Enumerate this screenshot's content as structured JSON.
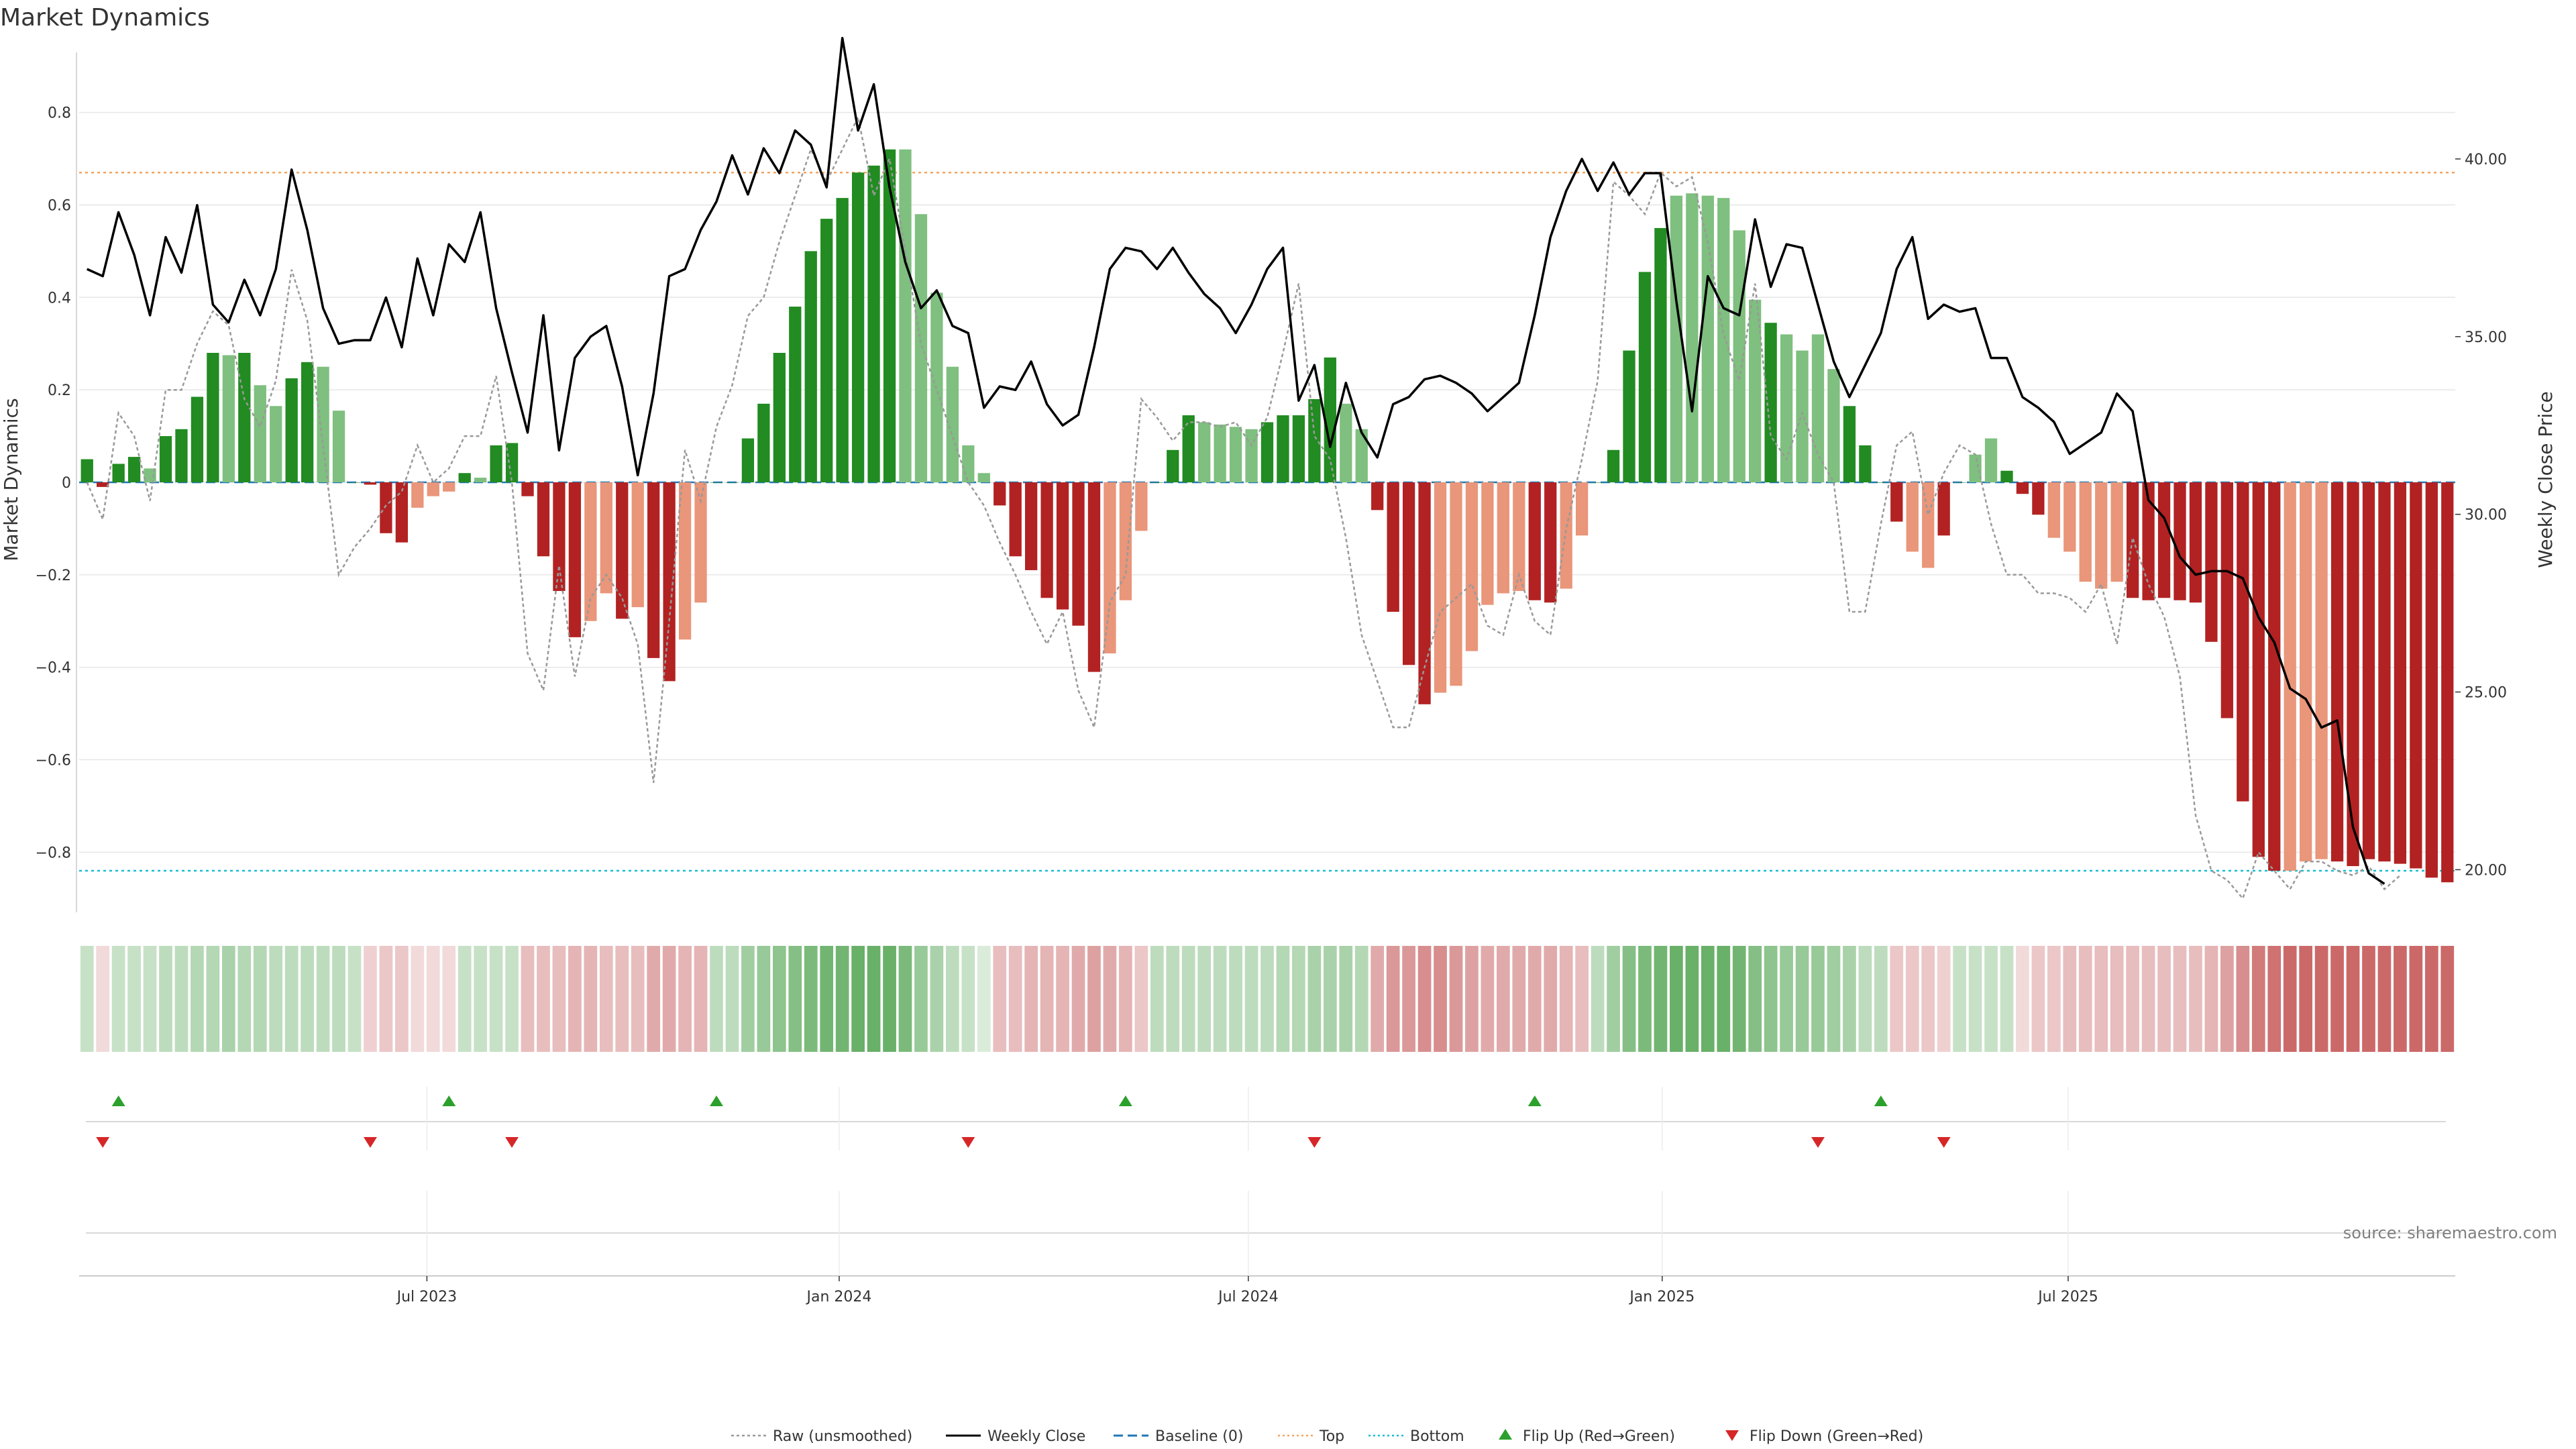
{
  "chart_data": {
    "type": "bar",
    "title": "Market Dynamics",
    "ylabel": "Market Dynamics",
    "y2label": "Weekly Close Price",
    "ylim": [
      -0.93,
      0.93
    ],
    "y2lim": [
      18.8,
      43.0
    ],
    "yticks": [
      0.8,
      0.6,
      0.4,
      0.2,
      0,
      -0.2,
      -0.4,
      -0.6,
      -0.8
    ],
    "ytick_labels": [
      "0.8",
      "0.6",
      "0.4",
      "0.2",
      "0",
      "−0.2",
      "−0.4",
      "−0.6",
      "−0.8"
    ],
    "y2ticks": [
      40,
      35,
      30,
      25,
      20
    ],
    "y2tick_labels": [
      "40.00",
      "35.00",
      "30.00",
      "25.00",
      "20.00"
    ],
    "x_dates": [
      "Jul 2023",
      "Jan 2024",
      "Jul 2024",
      "Jan 2025",
      "Jul 2025"
    ],
    "x_date_week_index": [
      21.6,
      47.8,
      73.8,
      100.1,
      125.9
    ],
    "top_line": 0.67,
    "bottom_line": -0.84,
    "baseline": 0,
    "bar_values": [
      0.05,
      -0.01,
      0.04,
      0.055,
      0.03,
      0.1,
      0.115,
      0.185,
      0.28,
      0.275,
      0.28,
      0.21,
      0.165,
      0.225,
      0.26,
      0.25,
      0.155,
      0,
      -0.005,
      -0.11,
      -0.13,
      -0.055,
      -0.03,
      -0.02,
      0.02,
      0.01,
      0.08,
      0.085,
      -0.03,
      -0.16,
      -0.235,
      -0.335,
      -0.3,
      -0.24,
      -0.295,
      -0.27,
      -0.38,
      -0.43,
      -0.34,
      -0.26,
      0,
      0,
      0.095,
      0.17,
      0.28,
      0.38,
      0.5,
      0.57,
      0.615,
      0.67,
      0.685,
      0.72,
      0.72,
      0.58,
      0.41,
      0.25,
      0.08,
      0.02,
      -0.05,
      -0.16,
      -0.19,
      -0.25,
      -0.275,
      -0.31,
      -0.41,
      -0.37,
      -0.255,
      -0.105,
      0,
      0.07,
      0.145,
      0.13,
      0.125,
      0.12,
      0.115,
      0.13,
      0.145,
      0.145,
      0.18,
      0.27,
      0.17,
      0.115,
      -0.06,
      -0.28,
      -0.395,
      -0.48,
      -0.455,
      -0.44,
      -0.365,
      -0.265,
      -0.24,
      -0.235,
      -0.255,
      -0.26,
      -0.23,
      -0.115,
      0,
      0.07,
      0.285,
      0.455,
      0.55,
      0.62,
      0.625,
      0.62,
      0.615,
      0.545,
      0.395,
      0.345,
      0.32,
      0.285,
      0.32,
      0.245,
      0.165,
      0.08,
      0,
      -0.085,
      -0.15,
      -0.185,
      -0.115,
      0,
      0.06,
      0.095,
      0.025,
      -0.025,
      -0.07,
      -0.12,
      -0.15,
      -0.215,
      -0.23,
      -0.215,
      -0.25,
      -0.255,
      -0.25,
      -0.255,
      -0.26,
      -0.345,
      -0.51,
      -0.69,
      -0.81,
      -0.84,
      -0.84,
      -0.82,
      -0.815,
      -0.82,
      -0.83,
      -0.815,
      -0.82,
      -0.825,
      -0.835,
      -0.855,
      -0.865
    ],
    "close_prices": [
      36.9,
      36.7,
      38.5,
      37.3,
      35.6,
      37.8,
      36.8,
      38.7,
      35.9,
      35.4,
      36.6,
      35.6,
      36.9,
      39.7,
      38.0,
      35.8,
      34.8,
      34.9,
      34.9,
      36.1,
      34.7,
      37.2,
      35.6,
      37.6,
      37.1,
      38.5,
      35.8,
      34.0,
      32.3,
      35.6,
      31.8,
      34.4,
      35.0,
      35.3,
      33.6,
      31.1,
      33.4,
      36.7,
      36.9,
      38.0,
      38.8,
      40.1,
      39.0,
      40.3,
      39.6,
      40.8,
      40.4,
      39.2,
      43.4,
      40.8,
      42.1,
      39.2,
      37.1,
      35.8,
      36.3,
      35.3,
      35.1,
      33.0,
      33.6,
      33.5,
      34.3,
      33.1,
      32.5,
      32.8,
      34.7,
      36.9,
      37.5,
      37.4,
      36.9,
      37.5,
      36.8,
      36.2,
      35.8,
      35.1,
      35.9,
      36.9,
      37.5,
      33.2,
      34.2,
      31.9,
      33.7,
      32.3,
      31.6,
      33.1,
      33.3,
      33.8,
      33.9,
      33.7,
      33.4,
      32.9,
      33.3,
      33.7,
      35.6,
      37.8,
      39.1,
      40.0,
      39.1,
      39.9,
      39.0,
      39.6,
      39.6,
      36.0,
      32.9,
      36.7,
      35.8,
      35.6,
      38.3,
      36.4,
      37.6,
      37.5,
      35.9,
      34.3,
      33.3,
      34.2,
      35.1,
      36.9,
      37.8,
      35.5,
      35.9,
      35.7,
      35.8,
      34.4,
      34.4,
      33.3,
      33.0,
      32.6,
      31.7,
      32.0,
      32.3,
      33.4,
      32.9,
      30.4,
      29.9,
      28.8,
      28.3,
      28.4,
      28.4,
      28.2,
      27.1,
      26.4,
      25.1,
      24.8,
      24.0,
      24.2,
      21.2,
      19.9,
      19.6
    ],
    "raw_values": [
      0.0,
      -0.08,
      0.15,
      0.1,
      -0.04,
      0.2,
      0.2,
      0.3,
      0.37,
      0.34,
      0.18,
      0.12,
      0.22,
      0.46,
      0.35,
      0.08,
      -0.2,
      -0.14,
      -0.1,
      -0.05,
      -0.02,
      0.08,
      0.0,
      0.03,
      0.1,
      0.1,
      0.23,
      0.0,
      -0.37,
      -0.45,
      -0.18,
      -0.42,
      -0.25,
      -0.2,
      -0.25,
      -0.35,
      -0.65,
      -0.3,
      0.07,
      -0.04,
      0.12,
      0.21,
      0.36,
      0.4,
      0.52,
      0.62,
      0.72,
      0.65,
      0.72,
      0.79,
      0.62,
      0.7,
      0.5,
      0.3,
      0.2,
      0.1,
      0.0,
      -0.05,
      -0.13,
      -0.2,
      -0.28,
      -0.35,
      -0.28,
      -0.45,
      -0.53,
      -0.26,
      -0.2,
      0.18,
      0.14,
      0.09,
      0.13,
      0.13,
      0.12,
      0.13,
      0.08,
      0.14,
      0.28,
      0.43,
      0.1,
      0.05,
      -0.12,
      -0.33,
      -0.43,
      -0.53,
      -0.53,
      -0.4,
      -0.28,
      -0.25,
      -0.22,
      -0.31,
      -0.33,
      -0.2,
      -0.3,
      -0.33,
      -0.1,
      0.05,
      0.22,
      0.65,
      0.62,
      0.58,
      0.67,
      0.64,
      0.66,
      0.52,
      0.32,
      0.22,
      0.43,
      0.1,
      0.05,
      0.15,
      0.06,
      0.0,
      -0.28,
      -0.28,
      -0.09,
      0.08,
      0.11,
      -0.07,
      0.02,
      0.08,
      0.06,
      -0.09,
      -0.2,
      -0.2,
      -0.24,
      -0.24,
      -0.25,
      -0.28,
      -0.22,
      -0.35,
      -0.12,
      -0.22,
      -0.29,
      -0.42,
      -0.72,
      -0.84,
      -0.86,
      -0.9,
      -0.8,
      -0.84,
      -0.88,
      -0.82,
      -0.82,
      -0.84,
      -0.85,
      -0.83,
      -0.88,
      -0.85
    ],
    "bar_shades": [
      "strong",
      "strong",
      "strong",
      "strong",
      "light",
      "strong",
      "strong",
      "strong",
      "strong",
      "light",
      "strong",
      "light",
      "light",
      "strong",
      "strong",
      "light",
      "light",
      "strong",
      "strong",
      "strong",
      "strong",
      "light",
      "light",
      "light",
      "strong",
      "light",
      "strong",
      "strong",
      "strong",
      "strong",
      "strong",
      "strong",
      "light",
      "light",
      "strong",
      "light",
      "strong",
      "strong",
      "light",
      "light",
      "strong",
      "strong",
      "strong",
      "strong",
      "strong",
      "strong",
      "strong",
      "strong",
      "strong",
      "strong",
      "strong",
      "strong",
      "light",
      "light",
      "light",
      "light",
      "light",
      "light",
      "strong",
      "strong",
      "strong",
      "strong",
      "strong",
      "strong",
      "strong",
      "light",
      "light",
      "light",
      "strong",
      "strong",
      "strong",
      "light",
      "light",
      "light",
      "light",
      "strong",
      "strong",
      "strong",
      "strong",
      "strong",
      "light",
      "light",
      "strong",
      "strong",
      "strong",
      "strong",
      "light",
      "light",
      "light",
      "light",
      "light",
      "light",
      "strong",
      "strong",
      "light",
      "light",
      "strong",
      "strong",
      "strong",
      "strong",
      "strong",
      "light",
      "light",
      "light",
      "light",
      "light",
      "light",
      "strong",
      "light",
      "light",
      "light",
      "light",
      "strong",
      "strong",
      "strong",
      "strong",
      "light",
      "light",
      "strong",
      "strong",
      "light",
      "light",
      "strong",
      "strong",
      "strong",
      "light",
      "light",
      "light",
      "light",
      "light",
      "strong",
      "strong",
      "strong",
      "strong",
      "strong",
      "strong",
      "strong",
      "strong",
      "strong",
      "strong",
      "light",
      "light",
      "light",
      "strong",
      "strong",
      "strong",
      "strong",
      "strong"
    ],
    "strip_alpha": [
      0.3,
      0.2,
      0.3,
      0.3,
      0.3,
      0.35,
      0.35,
      0.4,
      0.4,
      0.45,
      0.4,
      0.4,
      0.35,
      0.35,
      0.35,
      0.35,
      0.35,
      0.3,
      0.25,
      0.3,
      0.3,
      0.2,
      0.2,
      0.2,
      0.3,
      0.3,
      0.3,
      0.3,
      0.35,
      0.35,
      0.35,
      0.4,
      0.4,
      0.35,
      0.35,
      0.35,
      0.45,
      0.45,
      0.4,
      0.4,
      0.35,
      0.35,
      0.5,
      0.55,
      0.6,
      0.65,
      0.7,
      0.75,
      0.75,
      0.8,
      0.8,
      0.8,
      0.7,
      0.55,
      0.45,
      0.35,
      0.3,
      0.2,
      0.35,
      0.35,
      0.4,
      0.4,
      0.4,
      0.45,
      0.5,
      0.45,
      0.4,
      0.3,
      0.35,
      0.35,
      0.35,
      0.35,
      0.35,
      0.35,
      0.35,
      0.35,
      0.4,
      0.4,
      0.45,
      0.45,
      0.45,
      0.4,
      0.45,
      0.55,
      0.55,
      0.6,
      0.6,
      0.55,
      0.5,
      0.45,
      0.45,
      0.45,
      0.45,
      0.45,
      0.4,
      0.35,
      0.35,
      0.5,
      0.65,
      0.7,
      0.75,
      0.8,
      0.8,
      0.8,
      0.8,
      0.75,
      0.65,
      0.6,
      0.55,
      0.55,
      0.55,
      0.5,
      0.45,
      0.35,
      0.35,
      0.3,
      0.3,
      0.3,
      0.25,
      0.3,
      0.3,
      0.3,
      0.3,
      0.2,
      0.3,
      0.3,
      0.35,
      0.35,
      0.35,
      0.35,
      0.35,
      0.35,
      0.35,
      0.35,
      0.35,
      0.4,
      0.5,
      0.6,
      0.7,
      0.75,
      0.8,
      0.8,
      0.8,
      0.8,
      0.8,
      0.8,
      0.8,
      0.8,
      0.8,
      0.8,
      0.8
    ],
    "flip_up_weeks": [
      2,
      23,
      40,
      66,
      92,
      114
    ],
    "flip_down_weeks": [
      1,
      18,
      27,
      56,
      78,
      110,
      118
    ],
    "colors": {
      "green_strong": "#228b22",
      "green_light": "#7fbf7f",
      "red_strong": "#b22222",
      "red_light": "#e9967a",
      "close_line": "#000000",
      "raw_line": "#999999",
      "baseline": "#1f77b4",
      "top": "#f4a460",
      "bottom": "#17becf",
      "flip_up": "#2ca02c",
      "flip_down": "#d62728",
      "grid": "#e6e6e6"
    }
  },
  "legend": [
    {
      "label": "Raw (unsmoothed)",
      "style": "dotted-gray"
    },
    {
      "label": "Weekly Close",
      "style": "solid-black"
    },
    {
      "label": "Baseline (0)",
      "style": "dashed-blue"
    },
    {
      "label": "Top",
      "style": "dotted-orange"
    },
    {
      "label": "Bottom",
      "style": "dotted-cyan"
    },
    {
      "label": "Flip Up (Red→Green)",
      "style": "triangle-up-green"
    },
    {
      "label": "Flip Down (Green→Red)",
      "style": "triangle-down-red"
    }
  ],
  "source": "source: sharemaestro.com"
}
